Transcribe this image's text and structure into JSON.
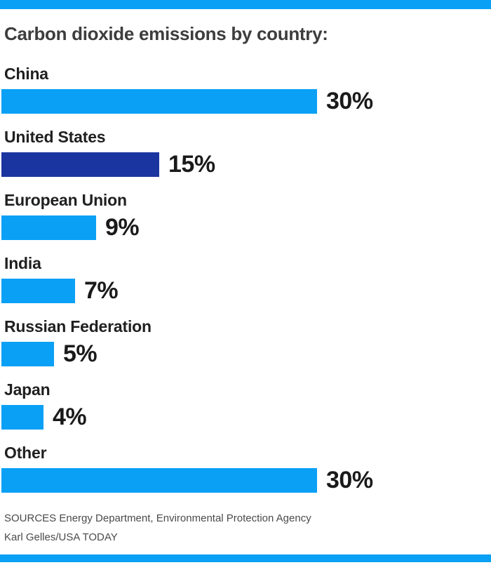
{
  "brand": {
    "divider_color": "#0aa0f5"
  },
  "chart_data": {
    "type": "bar",
    "orientation": "horizontal",
    "title": "Carbon dioxide emissions by country:",
    "unit": "%",
    "xlim": [
      0,
      30
    ],
    "grid": false,
    "legend": false,
    "categories": [
      "China",
      "United States",
      "European Union",
      "India",
      "Russian Federation",
      "Japan",
      "Other"
    ],
    "values": [
      30,
      15,
      9,
      7,
      5,
      4,
      30
    ],
    "bars": [
      {
        "label": "China",
        "value": 30,
        "value_label": "30%",
        "color": "#0aa0f5"
      },
      {
        "label": "United States",
        "value": 15,
        "value_label": "15%",
        "color": "#1b35a0"
      },
      {
        "label": "European Union",
        "value": 9,
        "value_label": "9%",
        "color": "#0aa0f5"
      },
      {
        "label": "India",
        "value": 7,
        "value_label": "7%",
        "color": "#0aa0f5"
      },
      {
        "label": "Russian Federation",
        "value": 5,
        "value_label": "5%",
        "color": "#0aa0f5"
      },
      {
        "label": "Japan",
        "value": 4,
        "value_label": "4%",
        "color": "#0aa0f5"
      },
      {
        "label": "Other",
        "value": 30,
        "value_label": "30%",
        "color": "#0aa0f5"
      }
    ]
  },
  "footer": {
    "sources": "SOURCES Energy Department, Environmental Protection Agency",
    "credit": "Karl Gelles/USA TODAY"
  }
}
